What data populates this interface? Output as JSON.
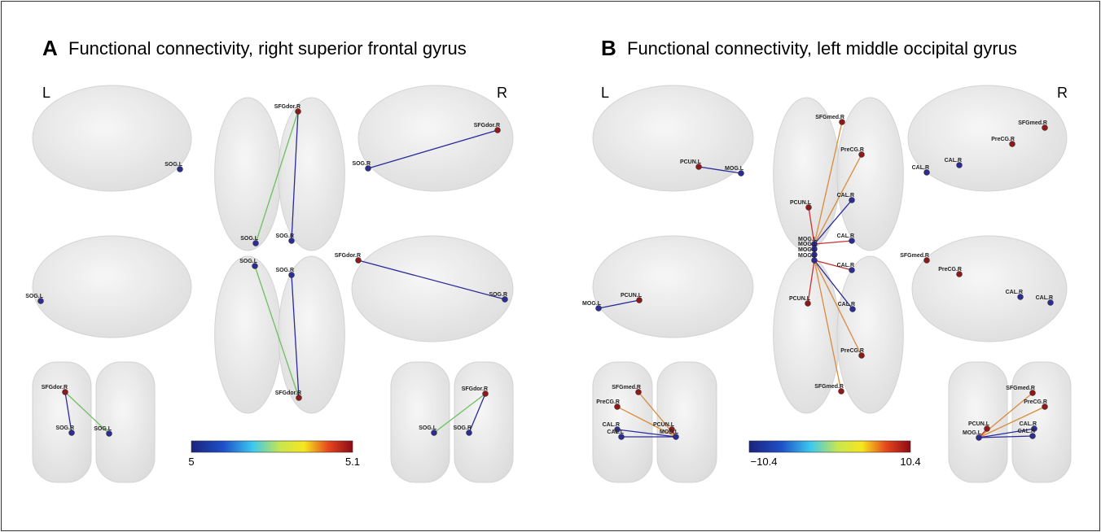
{
  "panels": [
    {
      "letter": "A",
      "title": "Functional connectivity, right superior frontal gyrus",
      "left_label": "L",
      "right_label": "R",
      "colorbar": {
        "min_label": "5",
        "max_label": "5.1"
      },
      "views": [
        {
          "nodes": [
            "SOG.L"
          ]
        },
        {
          "nodes": [
            "SFGdor.R",
            "SOG.L",
            "SOG.R"
          ]
        },
        {
          "nodes": [
            "SFGdor.R",
            "SOG.R"
          ]
        },
        {
          "nodes": [
            "SOG.L"
          ]
        },
        {
          "nodes": [
            "SOG.L",
            "SOG.R",
            "SFGdor.R"
          ]
        },
        {
          "nodes": [
            "SFGdor.R",
            "SOG.R"
          ]
        },
        {
          "nodes": [
            "SFGdor.R",
            "SOG.R",
            "SOG.L"
          ]
        },
        {
          "nodes": [
            "SFGdor.R",
            "SOG.L",
            "SOG.R"
          ]
        }
      ]
    },
    {
      "letter": "B",
      "title": "Functional connectivity, left middle occipital gyrus",
      "left_label": "L",
      "right_label": "R",
      "colorbar": {
        "min_label": "−10.4",
        "max_label": "10.4"
      },
      "views": [
        {
          "nodes": [
            "PCUN.L",
            "MOG.L"
          ]
        },
        {
          "nodes": [
            "SFGmed.R",
            "PreCG.R",
            "PCUN.L",
            "CAL.R",
            "CAL.R",
            "MOG.L",
            "MOG.L"
          ]
        },
        {
          "nodes": [
            "SFGmed.R",
            "PreCG.R",
            "CAL.R",
            "CAL.R"
          ]
        },
        {
          "nodes": [
            "PCUN.L",
            "MOG.L"
          ]
        },
        {
          "nodes": [
            "MOG.L",
            "MOG.L",
            "CAL.R",
            "PCUN.L",
            "CAL.R",
            "PreCG.R",
            "SFGmed.R"
          ]
        },
        {
          "nodes": [
            "SFGmed.R",
            "PreCG.R",
            "CAL.R",
            "CAL.R"
          ]
        },
        {
          "nodes": [
            "SFGmed.R",
            "PreCG.R",
            "CAL.R",
            "CAL.L",
            "PCUN.L",
            "MOG.L"
          ]
        },
        {
          "nodes": [
            "SFGmed.R",
            "PreCG.R",
            "PCUN.L",
            "CAL.R",
            "MOG.L",
            "CAL.R"
          ]
        }
      ]
    }
  ]
}
